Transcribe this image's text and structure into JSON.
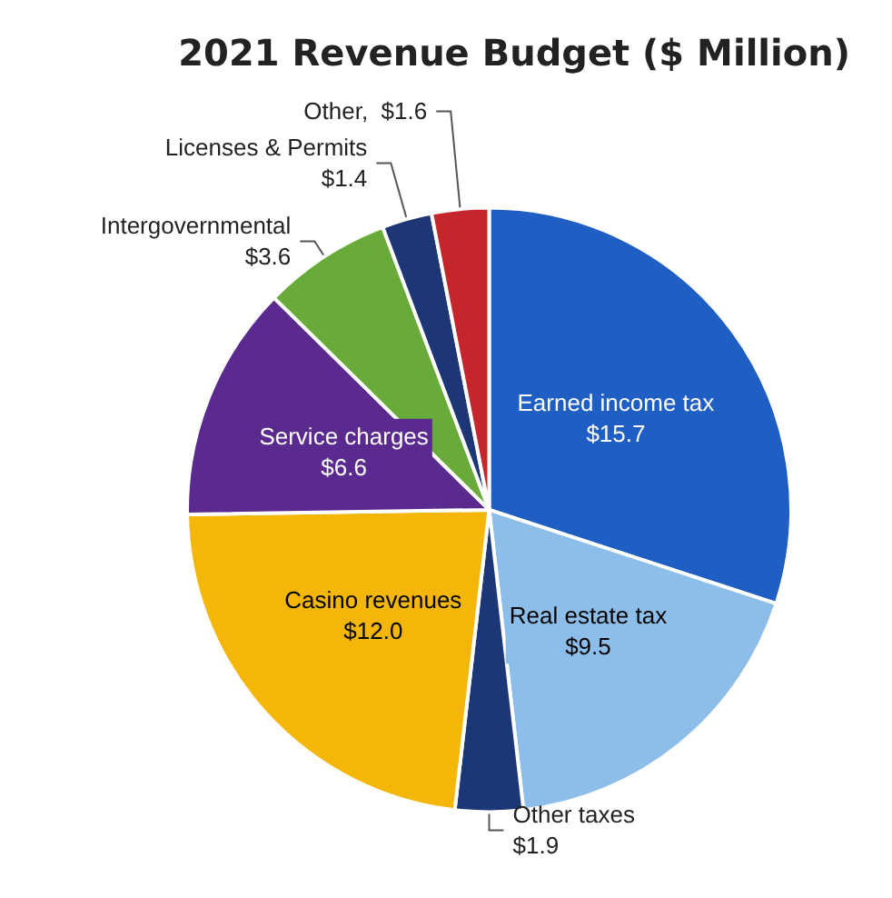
{
  "chart_data": {
    "type": "pie",
    "title": "2021 Revenue Budget ($ Million)",
    "categories": [
      "Earned income tax",
      "Real estate tax",
      "Other taxes",
      "Casino revenues",
      "Service charges",
      "Intergovernmental",
      "Licenses & Permits",
      "Other"
    ],
    "values": [
      15.7,
      9.5,
      1.9,
      12.0,
      6.6,
      3.6,
      1.4,
      1.6
    ],
    "value_labels": [
      "$15.7",
      "$9.5",
      "$1.9",
      "$12.0",
      "$6.6",
      "$3.6",
      "$1.4",
      "$1.6"
    ],
    "colors": [
      "#1f5fc4",
      "#8dbde9",
      "#1c3775",
      "#f4b608",
      "#5b2a8e",
      "#69ab3b",
      "#1d3776",
      "#c4262b"
    ],
    "legend": false
  }
}
